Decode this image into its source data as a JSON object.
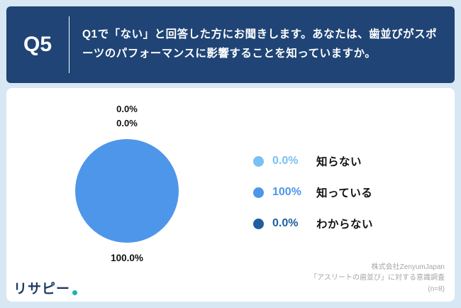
{
  "header": {
    "q_label": "Q5",
    "question": "Q1で「ない」と回答した方にお聞きします。あなたは、歯並びがスポーツのパフォーマンスに影響することを知っていますか。"
  },
  "chart_data": {
    "type": "pie",
    "title": "",
    "categories": [
      "知らない",
      "知っている",
      "わからない"
    ],
    "values": [
      0.0,
      100,
      0.0
    ],
    "colors": [
      "#79c1f2",
      "#4e96e9",
      "#1e5f9e"
    ],
    "pie_fill_color": "#4e96e9",
    "legend_position": "right",
    "labels": {
      "top_line1": "0.0%",
      "top_line2": "0.0%",
      "bottom": "100.0%"
    },
    "legend": [
      {
        "percent": "0.0%",
        "label": "知らない",
        "color": "#79c1f2"
      },
      {
        "percent": "100%",
        "label": "知っている",
        "color": "#4e96e9"
      },
      {
        "percent": "0.0%",
        "label": "わからない",
        "color": "#1e5f9e"
      }
    ]
  },
  "footer": {
    "source_line1": "株式会社ZenyumJapan",
    "source_line2": "「アスリートの歯並び」に対する意識調査",
    "source_line3": "(n=8)",
    "logo_text": "リサピー"
  }
}
